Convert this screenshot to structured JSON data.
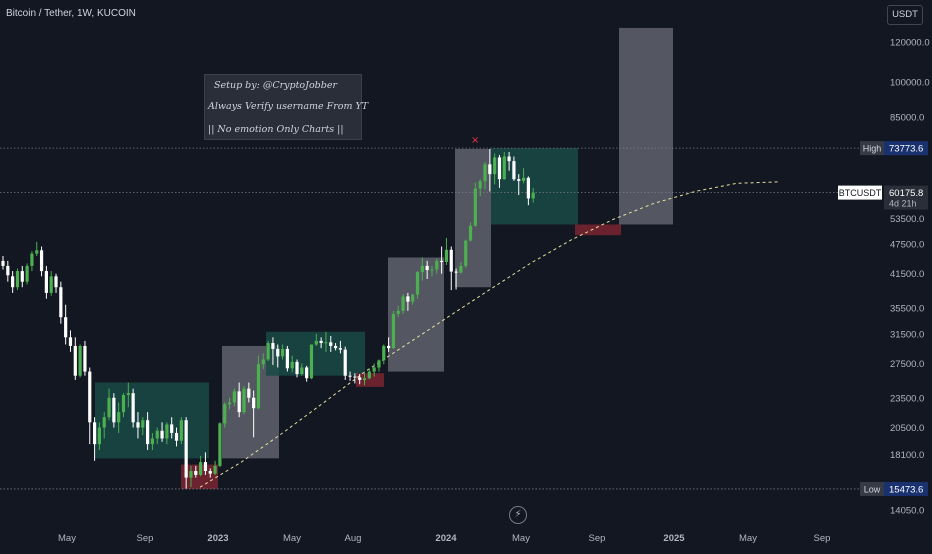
{
  "header": {
    "symbol_title": "Bitcoin / Tether, 1W, KUCOIN",
    "currency_button": "USDT"
  },
  "annotation_box": {
    "lines": [
      "Setup by: @CryptoJobber",
      "Always Verify username From YT",
      "|| No emotion Only Charts ||"
    ]
  },
  "colors": {
    "background": "#131722",
    "up_candle": "#26a69a",
    "up_candle_bright": "#4caf50",
    "down_candle": "#ffffff",
    "zone_green": "#1a4a45",
    "zone_gray": "#8a8d95",
    "zone_red": "#7a2430",
    "trend_line": "#e8e0a0",
    "high_low_line": "#787b86"
  },
  "icons": {
    "alert": "lightning-bolt-icon",
    "marker": "x-mark-icon"
  },
  "chart_data": {
    "type": "candlestick",
    "timeframe": "1W",
    "y_axis": {
      "scale": "log",
      "tick_labels": [
        "120000.0",
        "100000.0",
        "85000.0",
        "73773.6",
        "60175.8",
        "53500.0",
        "47500.0",
        "41500.0",
        "35500.0",
        "31500.0",
        "27500.0",
        "23500.0",
        "20500.0",
        "18100.0",
        "15473.6",
        "14050.0"
      ],
      "ticks": [
        120000,
        100000,
        85000,
        53500,
        47500,
        41500,
        35500,
        31500,
        27500,
        23500,
        20500,
        18100,
        14050
      ]
    },
    "x_axis": {
      "tick_labels": [
        "May",
        "Sep",
        "2023",
        "May",
        "Aug",
        "2024",
        "May",
        "Sep",
        "2025",
        "May",
        "Sep"
      ]
    },
    "high": {
      "label": "High",
      "value": "73773.6"
    },
    "low": {
      "label": "Low",
      "value": "15473.6"
    },
    "last_price": {
      "symbol": "BTCUSDT",
      "value": "60175.8",
      "countdown": "4d 21h"
    },
    "candles": [
      [
        44000,
        45000,
        42300,
        43000
      ],
      [
        43000,
        44000,
        40000,
        41200
      ],
      [
        41000,
        42000,
        38000,
        39000
      ],
      [
        39000,
        42500,
        38500,
        42000
      ],
      [
        42000,
        43000,
        39000,
        40000
      ],
      [
        40000,
        43500,
        39500,
        43000
      ],
      [
        43000,
        46000,
        42000,
        45500
      ],
      [
        45500,
        48000,
        45000,
        46200
      ],
      [
        46200,
        47000,
        41000,
        42000
      ],
      [
        42000,
        43000,
        37000,
        38000
      ],
      [
        38000,
        42000,
        37500,
        41000
      ],
      [
        41000,
        41500,
        38000,
        39000
      ],
      [
        39000,
        40000,
        33000,
        34000
      ],
      [
        34000,
        36000,
        30000,
        31000
      ],
      [
        31000,
        32000,
        29000,
        29800
      ],
      [
        29800,
        31000,
        25500,
        26000
      ],
      [
        26000,
        30000,
        25800,
        29800
      ],
      [
        29800,
        30500,
        26000,
        26500
      ],
      [
        26500,
        27000,
        19000,
        21000
      ],
      [
        21000,
        21500,
        17600,
        19000
      ],
      [
        19000,
        21000,
        18500,
        20500
      ],
      [
        20500,
        22000,
        19500,
        21500
      ],
      [
        21500,
        24500,
        21200,
        23500
      ],
      [
        23500,
        24000,
        20500,
        21000
      ],
      [
        21000,
        23000,
        20000,
        22000
      ],
      [
        22000,
        24000,
        21500,
        23800
      ],
      [
        23800,
        25200,
        22500,
        24000
      ],
      [
        24000,
        24500,
        20500,
        21000
      ],
      [
        21000,
        22000,
        19500,
        20500
      ],
      [
        20500,
        21500,
        19800,
        21200
      ],
      [
        21200,
        22000,
        18500,
        19000
      ],
      [
        19000,
        20000,
        18500,
        19500
      ],
      [
        19500,
        20500,
        19000,
        20200
      ],
      [
        20200,
        21000,
        19200,
        19500
      ],
      [
        19500,
        21000,
        19000,
        20800
      ],
      [
        20800,
        21500,
        19500,
        20000
      ],
      [
        20000,
        20500,
        18800,
        19300
      ],
      [
        19300,
        21500,
        19000,
        21200
      ],
      [
        21200,
        21500,
        15500,
        16300
      ],
      [
        16300,
        17200,
        15600,
        16800
      ],
      [
        16800,
        17200,
        16300,
        16500
      ],
      [
        16500,
        18000,
        16400,
        17500
      ],
      [
        17500,
        18300,
        16500,
        16800
      ],
      [
        16800,
        17000,
        16300,
        16600
      ],
      [
        16600,
        17600,
        16500,
        17200
      ],
      [
        17200,
        21000,
        17100,
        20900
      ],
      [
        20900,
        23000,
        20500,
        22800
      ],
      [
        22800,
        23500,
        22300,
        23000
      ],
      [
        23000,
        24500,
        22600,
        24200
      ],
      [
        24200,
        25200,
        21500,
        22000
      ],
      [
        22000,
        24800,
        21800,
        24500
      ],
      [
        24500,
        25200,
        23000,
        23500
      ],
      [
        23500,
        24300,
        19600,
        22400
      ],
      [
        22400,
        28500,
        22300,
        27400
      ],
      [
        27400,
        28800,
        26800,
        28000
      ],
      [
        28000,
        30500,
        27800,
        30200
      ],
      [
        30200,
        31000,
        27300,
        29400
      ],
      [
        29400,
        30000,
        27000,
        28400
      ],
      [
        28400,
        30000,
        28000,
        29400
      ],
      [
        29400,
        29800,
        26500,
        26900
      ],
      [
        26900,
        28500,
        26400,
        27700
      ],
      [
        27700,
        28000,
        25800,
        26200
      ],
      [
        26200,
        27500,
        26000,
        27000
      ],
      [
        27000,
        27200,
        25300,
        25700
      ],
      [
        25700,
        30000,
        25600,
        30000
      ],
      [
        30000,
        31500,
        29800,
        30500
      ],
      [
        30500,
        31000,
        29500,
        30200
      ],
      [
        30200,
        31800,
        29000,
        30300
      ],
      [
        30300,
        31200,
        29000,
        29800
      ],
      [
        29800,
        30200,
        29200,
        29500
      ],
      [
        29500,
        30500,
        28800,
        29300
      ],
      [
        29300,
        29700,
        25500,
        26000
      ],
      [
        26000,
        26500,
        25400,
        25900
      ],
      [
        25900,
        26300,
        25100,
        25800
      ],
      [
        25800,
        26200,
        25000,
        25500
      ],
      [
        25500,
        26300,
        24900,
        25700
      ],
      [
        25700,
        26900,
        25600,
        26500
      ],
      [
        26500,
        27500,
        25900,
        27000
      ],
      [
        27000,
        28000,
        26500,
        27900
      ],
      [
        27900,
        30000,
        27400,
        29800
      ],
      [
        29800,
        31000,
        29000,
        29500
      ],
      [
        29500,
        35000,
        29400,
        34500
      ],
      [
        34500,
        35800,
        34000,
        35000
      ],
      [
        35000,
        37800,
        34500,
        37400
      ],
      [
        37400,
        38000,
        35000,
        36500
      ],
      [
        36500,
        37900,
        36000,
        37700
      ],
      [
        37700,
        42000,
        37000,
        41800
      ],
      [
        41800,
        44700,
        40200,
        43000
      ],
      [
        43000,
        44000,
        40500,
        42200
      ],
      [
        42200,
        43000,
        41000,
        42300
      ],
      [
        42300,
        44500,
        41500,
        44000
      ],
      [
        44000,
        47000,
        41500,
        43800
      ],
      [
        43800,
        48900,
        43200,
        46300
      ],
      [
        46300,
        47000,
        38500,
        41900
      ],
      [
        41900,
        42500,
        38600,
        41700
      ],
      [
        41700,
        43800,
        41500,
        43000
      ],
      [
        43000,
        48500,
        42600,
        48300
      ],
      [
        48300,
        52500,
        48100,
        51700
      ],
      [
        51700,
        63000,
        51500,
        61300
      ],
      [
        61300,
        64000,
        59200,
        63400
      ],
      [
        63400,
        69200,
        61000,
        68500
      ],
      [
        68500,
        73500,
        60500,
        65500
      ],
      [
        65500,
        72000,
        62500,
        70700
      ],
      [
        70700,
        71500,
        61500,
        64000
      ],
      [
        64000,
        72500,
        63800,
        71000
      ],
      [
        71000,
        72500,
        66500,
        69500
      ],
      [
        69500,
        71000,
        63500,
        64000
      ],
      [
        64000,
        65500,
        59500,
        63500
      ],
      [
        63500,
        67300,
        62800,
        64400
      ],
      [
        64400,
        64800,
        56800,
        58600
      ],
      [
        58600,
        61500,
        57500,
        60176
      ]
    ],
    "zones": [
      {
        "type": "green",
        "from": 25200,
        "to": 17800
      },
      {
        "type": "gray",
        "from": 29800,
        "to": 17800
      },
      {
        "type": "green",
        "from": 31800,
        "to": 26000
      },
      {
        "type": "gray",
        "from": 44700,
        "to": 26500
      },
      {
        "type": "gray",
        "from": 73500,
        "to": 39000
      },
      {
        "type": "green",
        "from": 73773.6,
        "to": 52000
      },
      {
        "type": "gray",
        "from": 128000,
        "to": 52000
      },
      {
        "type": "red",
        "from": 17300,
        "to": 15473.6
      },
      {
        "type": "red",
        "from": 26300,
        "to": 24700
      },
      {
        "type": "red",
        "from": 52000,
        "to": 49500
      }
    ],
    "trend_line": [
      [
        15600,
        17500,
        20000,
        23000,
        26500,
        30000,
        34000,
        38500,
        43500,
        48500,
        53200,
        57300,
        60500,
        62800,
        63200
      ]
    ]
  }
}
